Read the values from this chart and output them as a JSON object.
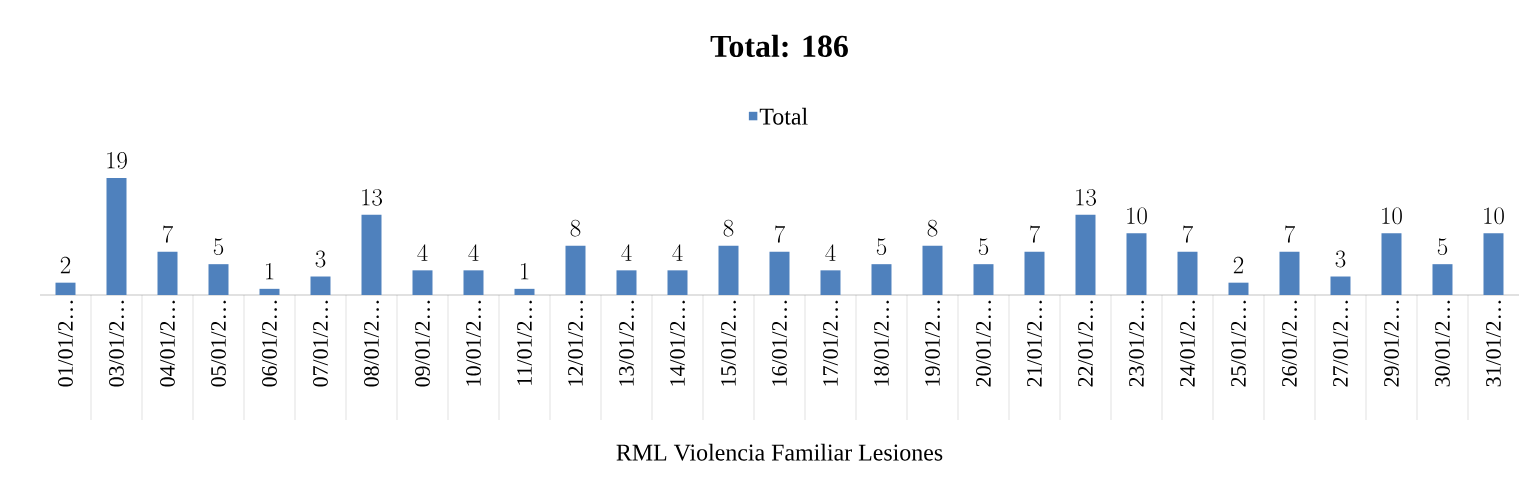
{
  "chart_data": {
    "type": "bar",
    "title": "Total: 186",
    "xlabel": "RML Violencia Familiar Lesiones",
    "categories": [
      "01/01/2…",
      "03/01/2…",
      "04/01/2…",
      "05/01/2…",
      "06/01/2…",
      "07/01/2…",
      "08/01/2…",
      "09/01/2…",
      "10/01/2…",
      "11/01/2…",
      "12/01/2…",
      "13/01/2…",
      "14/01/2…",
      "15/01/2…",
      "16/01/2…",
      "17/01/2…",
      "18/01/2…",
      "19/01/2…",
      "20/01/2…",
      "21/01/2…",
      "22/01/2…",
      "23/01/2…",
      "24/01/2…",
      "25/01/2…",
      "26/01/2…",
      "27/01/2…",
      "29/01/2…",
      "30/01/2…",
      "31/01/2…"
    ],
    "series": [
      {
        "name": "Total",
        "color": "#4f81bd",
        "values": [
          2,
          19,
          7,
          5,
          1,
          3,
          13,
          4,
          4,
          1,
          8,
          4,
          4,
          8,
          7,
          4,
          5,
          8,
          5,
          7,
          13,
          10,
          7,
          2,
          7,
          3,
          10,
          5,
          10
        ]
      }
    ],
    "data_labels": true,
    "legend": "top"
  }
}
